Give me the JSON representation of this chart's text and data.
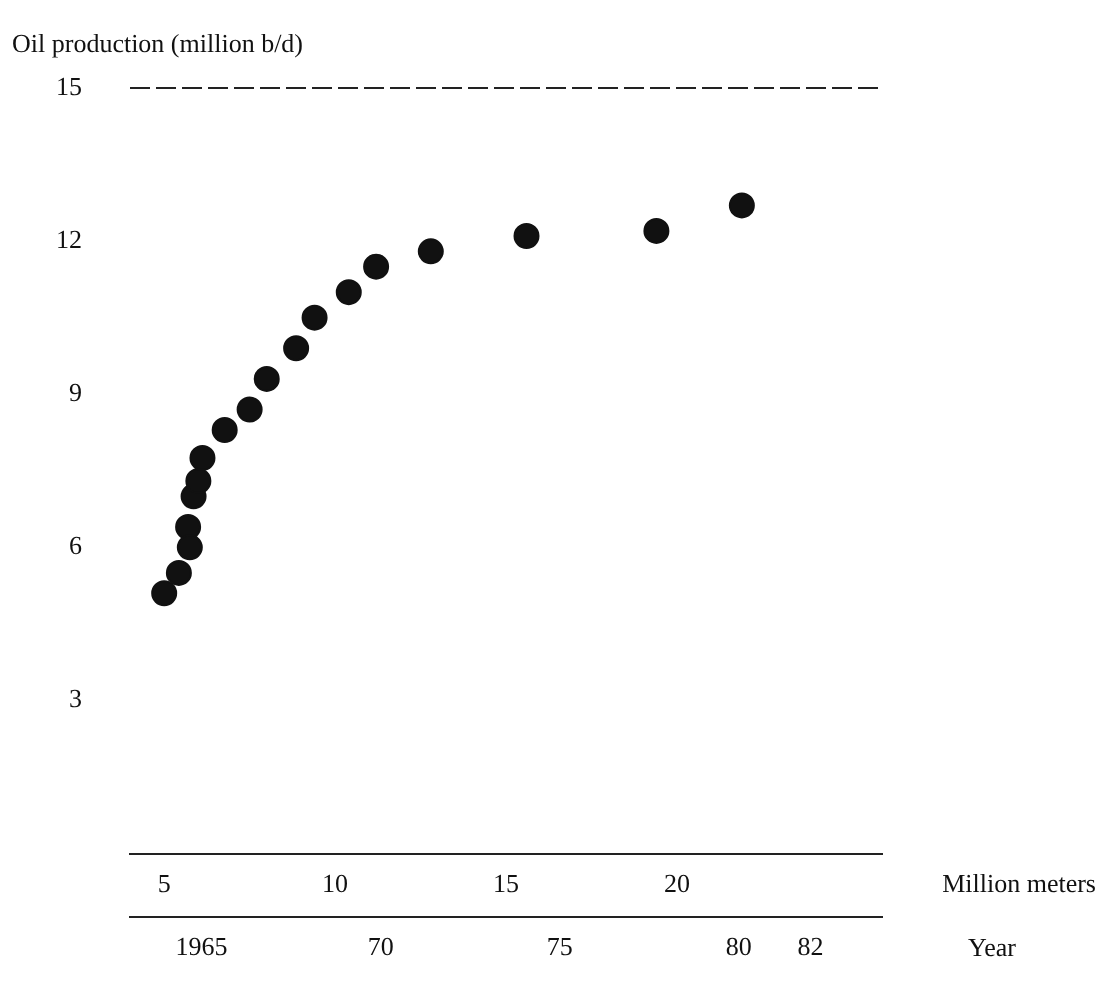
{
  "chart_data": {
    "type": "scatter",
    "ylabel": "Oil production (million b/d)",
    "xlabel": "Million meters",
    "x2label": "Year",
    "x": [
      5.0,
      5.43,
      5.7,
      5.75,
      5.86,
      6.0,
      6.12,
      6.77,
      7.5,
      8.0,
      8.86,
      9.4,
      10.4,
      11.2,
      12.8,
      15.6,
      19.4,
      21.9
    ],
    "series": [
      {
        "color": "#111111",
        "values": [
          5.1,
          5.5,
          6.4,
          6.0,
          7.0,
          7.3,
          7.75,
          8.3,
          8.7,
          9.3,
          9.9,
          10.5,
          11.0,
          11.5,
          11.8,
          12.1,
          12.2,
          12.7
        ]
      }
    ],
    "xlim": [
      4,
      26
    ],
    "xticks": [
      5,
      10,
      15,
      20
    ],
    "x2lim": [
      1963,
      1984
    ],
    "x2ticks": [
      1965,
      {
        "value": 1970,
        "label": "70"
      },
      {
        "value": 1975,
        "label": "75"
      },
      {
        "value": 1980,
        "label": "80"
      },
      {
        "value": 1982,
        "label": "82"
      }
    ],
    "ylim": [
      0,
      15
    ],
    "yticks": [
      3,
      6,
      9,
      12,
      15
    ],
    "grid": false,
    "legend": false,
    "marker": "circle"
  }
}
